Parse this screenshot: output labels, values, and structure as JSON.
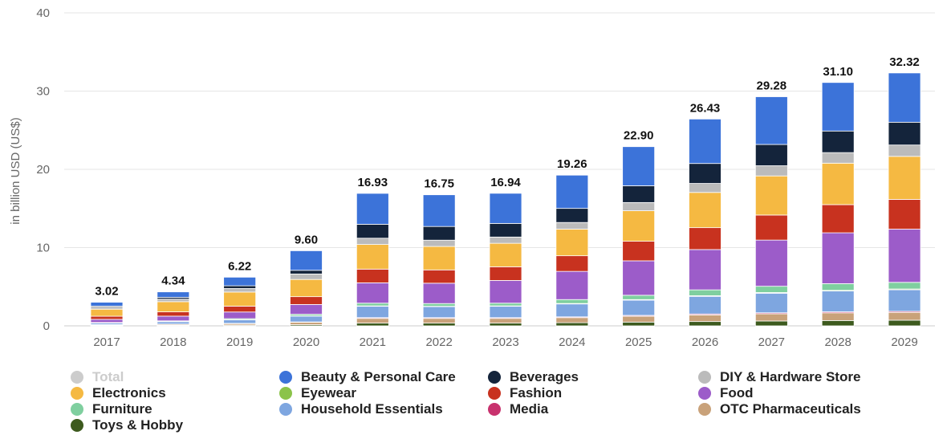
{
  "chart_data": {
    "type": "bar",
    "stacked": true,
    "ylabel": "in billion USD (US$)",
    "ylim": [
      0,
      40
    ],
    "yticks": [
      0,
      10,
      20,
      30,
      40
    ],
    "grid": true,
    "legend_position": "bottom",
    "categories": [
      "2017",
      "2018",
      "2019",
      "2020",
      "2021",
      "2022",
      "2023",
      "2024",
      "2025",
      "2026",
      "2027",
      "2028",
      "2029"
    ],
    "totals": [
      3.02,
      4.34,
      6.22,
      9.6,
      16.93,
      16.75,
      16.94,
      19.26,
      22.9,
      26.43,
      29.28,
      31.1,
      32.32
    ],
    "total_labels": [
      "3.02",
      "4.34",
      "6.22",
      "9.60",
      "16.93",
      "16.75",
      "16.94",
      "19.26",
      "22.90",
      "26.43",
      "29.28",
      "31.10",
      "32.32"
    ],
    "series": [
      {
        "name": "Toys & Hobby",
        "color": "#3d5a1e",
        "values": [
          0.06,
          0.08,
          0.1,
          0.15,
          0.35,
          0.35,
          0.35,
          0.4,
          0.48,
          0.55,
          0.62,
          0.68,
          0.72
        ]
      },
      {
        "name": "OTC Pharmaceuticals",
        "color": "#c9a27a",
        "values": [
          0.08,
          0.12,
          0.18,
          0.3,
          0.6,
          0.6,
          0.6,
          0.65,
          0.75,
          0.85,
          0.92,
          0.98,
          1.0
        ]
      },
      {
        "name": "Media",
        "color": "#c8326e",
        "values": [
          0.02,
          0.03,
          0.04,
          0.05,
          0.1,
          0.1,
          0.1,
          0.1,
          0.11,
          0.12,
          0.13,
          0.14,
          0.14
        ]
      },
      {
        "name": "Household Essentials",
        "color": "#7ea6e0",
        "values": [
          0.2,
          0.3,
          0.45,
          0.75,
          1.45,
          1.4,
          1.45,
          1.65,
          1.95,
          2.25,
          2.5,
          2.65,
          2.75
        ]
      },
      {
        "name": "Eyewear",
        "color": "#8bc34a",
        "values": [
          0.01,
          0.02,
          0.02,
          0.03,
          0.05,
          0.05,
          0.05,
          0.06,
          0.07,
          0.08,
          0.09,
          0.09,
          0.1
        ]
      },
      {
        "name": "Furniture",
        "color": "#7fcf9f",
        "values": [
          0.06,
          0.09,
          0.13,
          0.2,
          0.35,
          0.35,
          0.35,
          0.5,
          0.55,
          0.75,
          0.8,
          0.85,
          0.85
        ]
      },
      {
        "name": "Food",
        "color": "#9c5cc9",
        "values": [
          0.4,
          0.6,
          0.85,
          1.25,
          2.6,
          2.6,
          2.9,
          3.6,
          4.4,
          5.15,
          5.9,
          6.5,
          6.8
        ]
      },
      {
        "name": "Fashion",
        "color": "#c8321f",
        "values": [
          0.4,
          0.55,
          0.75,
          1.0,
          1.75,
          1.7,
          1.75,
          2.0,
          2.5,
          2.8,
          3.2,
          3.6,
          3.8
        ]
      },
      {
        "name": "Electronics",
        "color": "#f5b942",
        "values": [
          0.9,
          1.3,
          1.8,
          2.2,
          3.15,
          3.0,
          3.0,
          3.4,
          3.9,
          4.5,
          5.0,
          5.3,
          5.5
        ]
      },
      {
        "name": "DIY & Hardware Store",
        "color": "#bbbbbb",
        "values": [
          0.25,
          0.33,
          0.45,
          0.7,
          0.8,
          0.8,
          0.8,
          0.85,
          1.05,
          1.15,
          1.3,
          1.35,
          1.45
        ]
      },
      {
        "name": "Beverages",
        "color": "#14243b",
        "values": [
          0.14,
          0.22,
          0.35,
          0.47,
          1.78,
          1.75,
          1.74,
          1.8,
          2.14,
          2.55,
          2.72,
          2.76,
          2.91
        ]
      },
      {
        "name": "Beauty & Personal Care",
        "color": "#3c73d9",
        "values": [
          0.5,
          0.7,
          1.1,
          2.5,
          3.95,
          4.05,
          3.85,
          4.25,
          5.0,
          5.68,
          6.1,
          6.2,
          6.3
        ]
      }
    ]
  },
  "legend": {
    "items": [
      {
        "label": "Total",
        "color": "#cccccc",
        "muted": true
      },
      {
        "label": "Beauty & Personal Care",
        "color": "#3c73d9"
      },
      {
        "label": "Beverages",
        "color": "#14243b"
      },
      {
        "label": "DIY & Hardware Store",
        "color": "#bbbbbb"
      },
      {
        "label": "Electronics",
        "color": "#f5b942"
      },
      {
        "label": "Eyewear",
        "color": "#8bc34a"
      },
      {
        "label": "Fashion",
        "color": "#c8321f"
      },
      {
        "label": "Food",
        "color": "#9c5cc9"
      },
      {
        "label": "Furniture",
        "color": "#7fcf9f"
      },
      {
        "label": "Household Essentials",
        "color": "#7ea6e0"
      },
      {
        "label": "Media",
        "color": "#c8326e"
      },
      {
        "label": "OTC Pharmaceuticals",
        "color": "#c9a27a"
      },
      {
        "label": "Toys & Hobby",
        "color": "#3d5a1e"
      }
    ]
  }
}
